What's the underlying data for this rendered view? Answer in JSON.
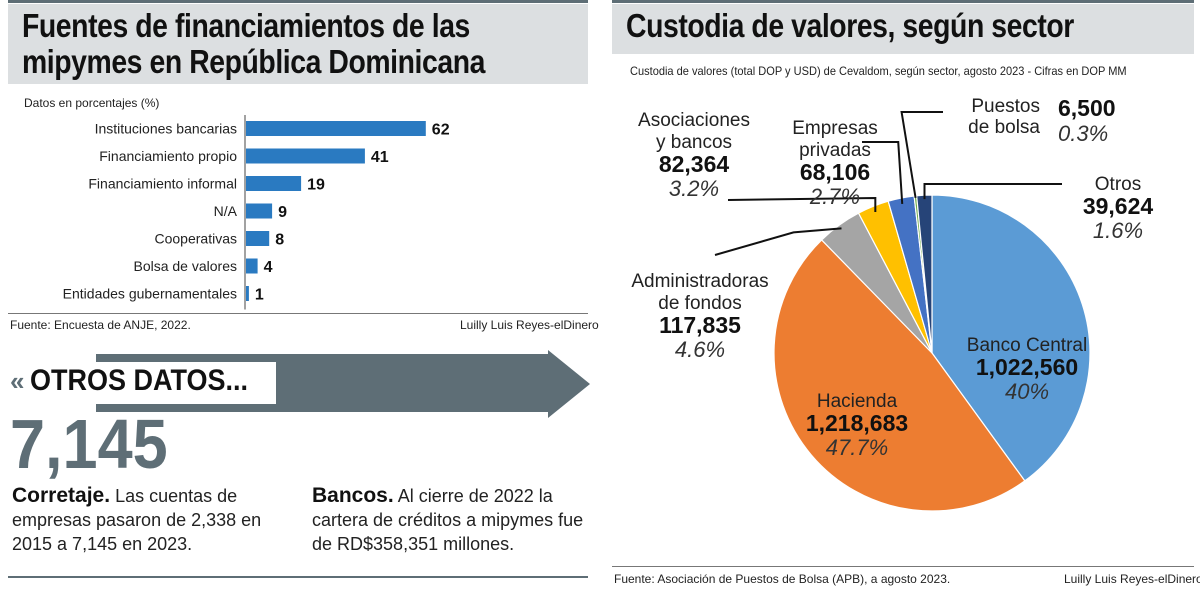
{
  "left": {
    "title_line1": "Fuentes de financiamientos de las",
    "title_line2": "mipymes en República Dominicana",
    "units_note": "Datos en porcentajes (%)",
    "source": "Fuente: Encuesta de ANJE, 2022.",
    "credit": "Luilly Luis Reyes-elDinero"
  },
  "otros": {
    "banner": "OTROS DATOS...",
    "big_number": "7,145",
    "corretaje_head": "Corretaje.",
    "corretaje_body": "Las cuentas de empresas pasaron de 2,338 en 2015 a 7,145 en 2023.",
    "bancos_head": "Bancos.",
    "bancos_body": "Al cierre de 2022 la cartera de créditos a mipymes fue de RD$358,351 millones."
  },
  "right": {
    "title": "Custodia de valores, según sector",
    "subtitle": "Custodia de valores (total DOP y USD) de Cevaldom, según sector, agosto 2023 - Cifras en DOP MM",
    "source": "Fuente: Asociación de Puestos de Bolsa (APB), a agosto 2023.",
    "credit": "Luilly Luis Reyes-elDinero"
  },
  "colors": {
    "bar": "#2a7ac1",
    "banner": "#5e6e76",
    "pie_banco_central": "#5b9bd5",
    "pie_hacienda": "#ed7d31",
    "pie_administradoras": "#a5a5a5",
    "pie_asociaciones": "#ffc000",
    "pie_empresas": "#4472c4",
    "pie_puestos": "#70ad47",
    "pie_otros": "#264478"
  },
  "chart_data": [
    {
      "type": "bar",
      "orientation": "horizontal",
      "categories": [
        "Instituciones bancarias",
        "Financiamiento propio",
        "Financiamiento informal",
        "N/A",
        "Cooperativas",
        "Bolsa de valores",
        "Entidades gubernamentales"
      ],
      "values": [
        62,
        41,
        19,
        9,
        8,
        4,
        1
      ],
      "labels": [
        "62",
        "41",
        "19",
        "9",
        "8",
        "4",
        "1"
      ],
      "title": "Fuentes de financiamientos de las mipymes en República Dominicana",
      "xlim": [
        0,
        70
      ]
    },
    {
      "type": "pie",
      "title": "Custodia de valores, según sector",
      "slices": [
        {
          "name": "Banco Central",
          "value": 1022560,
          "value_label": "1,022,560",
          "pct_label": "40%"
        },
        {
          "name": "Hacienda",
          "value": 1218683,
          "value_label": "1,218,683",
          "pct_label": "47.7%"
        },
        {
          "name": "Administradoras de fondos",
          "name_lines": [
            "Administradoras",
            "de fondos"
          ],
          "value": 117835,
          "value_label": "117,835",
          "pct_label": "4.6%"
        },
        {
          "name": "Asociaciones y bancos",
          "name_lines": [
            "Asociaciones",
            "y bancos"
          ],
          "value": 82364,
          "value_label": "82,364",
          "pct_label": "3.2%"
        },
        {
          "name": "Empresas privadas",
          "name_lines": [
            "Empresas",
            "privadas"
          ],
          "value": 68106,
          "value_label": "68,106",
          "pct_label": "2.7%"
        },
        {
          "name": "Puestos de bolsa",
          "name_lines": [
            "Puestos",
            "de bolsa"
          ],
          "value": 6500,
          "value_label": "6,500",
          "pct_label": "0.3%"
        },
        {
          "name": "Otros",
          "name_lines": [
            "Otros"
          ],
          "value": 39624,
          "value_label": "39,624",
          "pct_label": "1.6%"
        }
      ]
    }
  ]
}
